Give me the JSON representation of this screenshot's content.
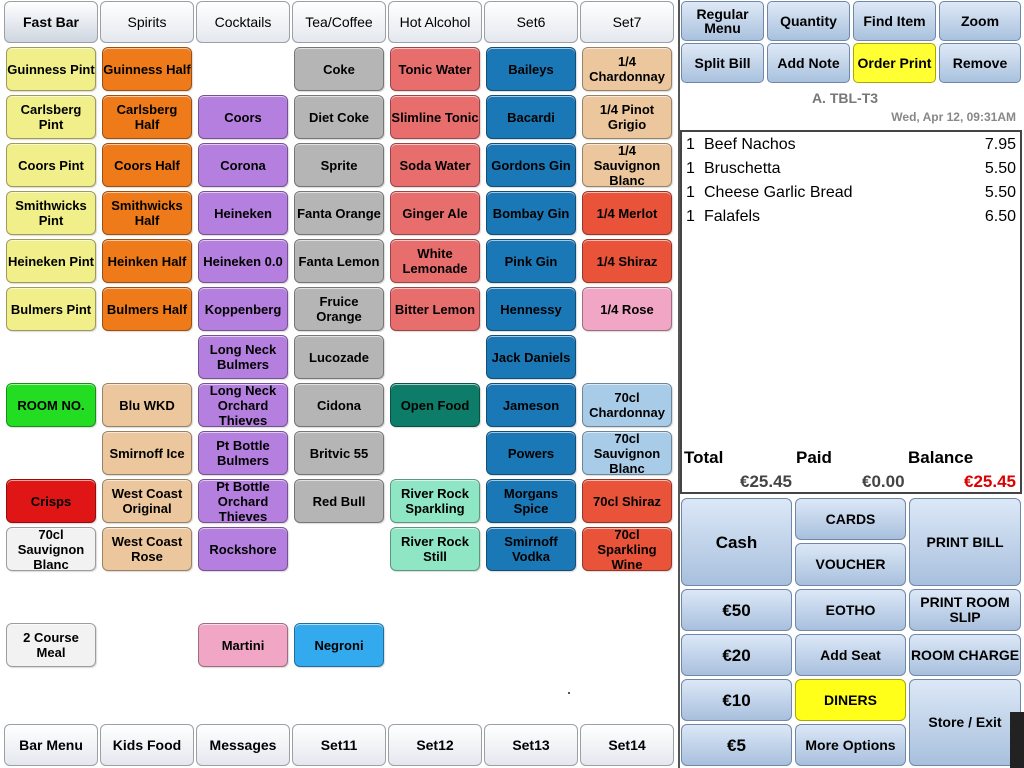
{
  "tabs_top": [
    "Fast Bar",
    "Spirits",
    "Cocktails",
    "Tea/Coffee",
    "Hot Alcohol",
    "Set6",
    "Set7"
  ],
  "tabs_bottom": [
    "Bar Menu",
    "Kids Food",
    "Messages",
    "Set11",
    "Set12",
    "Set13",
    "Set14"
  ],
  "items": [
    {
      "label": "Guinness Pint",
      "color": "#f0ef8a",
      "text_color": "#000000"
    },
    {
      "label": "Guinness Half",
      "color": "#ee7a1a",
      "text_color": "#000000"
    },
    {
      "label": "Coke",
      "color": "#b5b5b5",
      "text_color": "#000000"
    },
    {
      "label": "Tonic Water",
      "color": "#e86e6e",
      "text_color": "#000000"
    },
    {
      "label": "Baileys",
      "color": "#1b78b6",
      "text_color": "#000000"
    },
    {
      "label": "1/4 Chardonnay",
      "color": "#ecc69c",
      "text_color": "#000000"
    },
    {
      "label": "Carlsberg Pint",
      "color": "#f0ef8a",
      "text_color": "#000000"
    },
    {
      "label": "Carlsberg Half",
      "color": "#ee7a1a",
      "text_color": "#000000"
    },
    {
      "label": "Coors",
      "color": "#b57fe0",
      "text_color": "#000000"
    },
    {
      "label": "Diet Coke",
      "color": "#b5b5b5",
      "text_color": "#000000"
    },
    {
      "label": "Slimline Tonic",
      "color": "#e86e6e",
      "text_color": "#000000"
    },
    {
      "label": "Bacardi",
      "color": "#1b78b6",
      "text_color": "#000000"
    },
    {
      "label": "1/4 Pinot Grigio",
      "color": "#ecc69c",
      "text_color": "#000000"
    },
    {
      "label": "Coors Pint",
      "color": "#f0ef8a",
      "text_color": "#000000"
    },
    {
      "label": "Coors Half",
      "color": "#ee7a1a",
      "text_color": "#000000"
    },
    {
      "label": "Corona",
      "color": "#b57fe0",
      "text_color": "#000000"
    },
    {
      "label": "Sprite",
      "color": "#b5b5b5",
      "text_color": "#000000"
    },
    {
      "label": "Soda Water",
      "color": "#e86e6e",
      "text_color": "#000000"
    },
    {
      "label": "Gordons Gin",
      "color": "#1b78b6",
      "text_color": "#000000"
    },
    {
      "label": "1/4 Sauvignon Blanc",
      "color": "#ecc69c",
      "text_color": "#000000"
    },
    {
      "label": "Smithwicks Pint",
      "color": "#f0ef8a",
      "text_color": "#000000"
    },
    {
      "label": "Smithwicks Half",
      "color": "#ee7a1a",
      "text_color": "#000000"
    },
    {
      "label": "Heineken",
      "color": "#b57fe0",
      "text_color": "#000000"
    },
    {
      "label": "Fanta Orange",
      "color": "#b5b5b5",
      "text_color": "#000000"
    },
    {
      "label": "Ginger Ale",
      "color": "#e86e6e",
      "text_color": "#000000"
    },
    {
      "label": "Bombay Gin",
      "color": "#1b78b6",
      "text_color": "#000000"
    },
    {
      "label": "1/4 Merlot",
      "color": "#e8533a",
      "text_color": "#000000"
    },
    {
      "label": "Heineken Pint",
      "color": "#f0ef8a",
      "text_color": "#000000"
    },
    {
      "label": "Heinken Half",
      "color": "#ee7a1a",
      "text_color": "#000000"
    },
    {
      "label": "Heineken 0.0",
      "color": "#b57fe0",
      "text_color": "#000000"
    },
    {
      "label": "Fanta Lemon",
      "color": "#b5b5b5",
      "text_color": "#000000"
    },
    {
      "label": "White Lemonade",
      "color": "#e86e6e",
      "text_color": "#000000"
    },
    {
      "label": "Pink Gin",
      "color": "#1b78b6",
      "text_color": "#000000"
    },
    {
      "label": "1/4 Shiraz",
      "color": "#e8533a",
      "text_color": "#000000"
    },
    {
      "label": "Bulmers Pint",
      "color": "#f0ef8a",
      "text_color": "#000000"
    },
    {
      "label": "Bulmers Half",
      "color": "#ee7a1a",
      "text_color": "#000000"
    },
    {
      "label": "Koppenberg",
      "color": "#b57fe0",
      "text_color": "#000000"
    },
    {
      "label": "Fruice Orange",
      "color": "#b5b5b5",
      "text_color": "#000000"
    },
    {
      "label": "Bitter Lemon",
      "color": "#e86e6e",
      "text_color": "#000000"
    },
    {
      "label": "Hennessy",
      "color": "#1b78b6",
      "text_color": "#000000"
    },
    {
      "label": "1/4 Rose",
      "color": "#f0a6c4",
      "text_color": "#000000"
    },
    {
      "label": "Long Neck Bulmers",
      "color": "#b57fe0",
      "text_color": "#000000"
    },
    {
      "label": "Lucozade",
      "color": "#b5b5b5",
      "text_color": "#000000"
    },
    {
      "label": "Jack Daniels",
      "color": "#1b78b6",
      "text_color": "#000000"
    },
    {
      "label": "ROOM NO.",
      "color": "#22dd22",
      "text_color": "#000000"
    },
    {
      "label": "Blu WKD",
      "color": "#ecc69c",
      "text_color": "#000000"
    },
    {
      "label": "Long Neck Orchard Thieves",
      "color": "#b57fe0",
      "text_color": "#000000"
    },
    {
      "label": "Cidona",
      "color": "#b5b5b5",
      "text_color": "#000000"
    },
    {
      "label": "Open Food",
      "color": "#0d7d6a",
      "text_color": "#000000"
    },
    {
      "label": "Jameson",
      "color": "#1b78b6",
      "text_color": "#000000"
    },
    {
      "label": "70cl Chardonnay",
      "color": "#a8cce8",
      "text_color": "#000000"
    },
    {
      "label": "Smirnoff Ice",
      "color": "#ecc69c",
      "text_color": "#000000"
    },
    {
      "label": "Pt Bottle Bulmers",
      "color": "#b57fe0",
      "text_color": "#000000"
    },
    {
      "label": "Britvic 55",
      "color": "#b5b5b5",
      "text_color": "#000000"
    },
    {
      "label": "Powers",
      "color": "#1b78b6",
      "text_color": "#000000"
    },
    {
      "label": "70cl Sauvignon Blanc",
      "color": "#a8cce8",
      "text_color": "#000000"
    },
    {
      "label": "Crisps",
      "color": "#e01515",
      "text_color": "#000000"
    },
    {
      "label": "West Coast Original",
      "color": "#ecc69c",
      "text_color": "#000000"
    },
    {
      "label": "Pt Bottle Orchard Thieves",
      "color": "#b57fe0",
      "text_color": "#000000"
    },
    {
      "label": "Red Bull",
      "color": "#b5b5b5",
      "text_color": "#000000"
    },
    {
      "label": "River Rock Sparkling",
      "color": "#8ee6c4",
      "text_color": "#000000"
    },
    {
      "label": "Morgans Spice",
      "color": "#1b78b6",
      "text_color": "#000000"
    },
    {
      "label": "70cl Shiraz",
      "color": "#e8533a",
      "text_color": "#000000"
    },
    {
      "label": "70cl Sauvignon Blanc",
      "color": "#f2f2f2",
      "text_color": "#000000"
    },
    {
      "label": "West Coast Rose",
      "color": "#ecc69c",
      "text_color": "#000000"
    },
    {
      "label": "Rockshore",
      "color": "#b57fe0",
      "text_color": "#000000"
    },
    {
      "label": "River Rock Still",
      "color": "#8ee6c4",
      "text_color": "#000000"
    },
    {
      "label": "Smirnoff Vodka",
      "color": "#1b78b6",
      "text_color": "#000000"
    },
    {
      "label": "70cl Sparkling Wine",
      "color": "#e8533a",
      "text_color": "#000000"
    },
    {
      "label": "2 Course Meal",
      "color": "#f2f2f2",
      "text_color": "#000000"
    },
    {
      "label": "Martini",
      "color": "#f0a6c4",
      "text_color": "#000000"
    },
    {
      "label": "Negroni",
      "color": "#33aaee",
      "text_color": "#000000"
    }
  ],
  "top_buttons": [
    "Regular Menu",
    "Quantity",
    "Find Item",
    "Zoom",
    "Split Bill",
    "Add Note",
    "Order Print",
    "Remove"
  ],
  "order": {
    "table": "A. TBL-T3",
    "datetime": "Wed, Apr 12, 09:31AM",
    "lines": [
      {
        "qty": "1",
        "name": "Beef Nachos",
        "price": "7.95"
      },
      {
        "qty": "1",
        "name": "Bruschetta",
        "price": "5.50"
      },
      {
        "qty": "1",
        "name": "Cheese Garlic Bread",
        "price": "5.50"
      },
      {
        "qty": "1",
        "name": "Falafels",
        "price": "6.50"
      }
    ],
    "total_label": "Total",
    "paid_label": "Paid",
    "balance_label": "Balance",
    "total": "€25.45",
    "paid": "€0.00",
    "balance": "€25.45",
    "balance_color": "#dd0000"
  },
  "pay_buttons": [
    "Cash",
    "CARDS",
    "PRINT BILL",
    "VOUCHER",
    "€50",
    "EOTHO",
    "PRINT ROOM SLIP",
    "€20",
    "Add Seat",
    "ROOM CHARGE",
    "€10",
    "DINERS",
    "Store / Exit",
    "€5",
    "More Options"
  ]
}
